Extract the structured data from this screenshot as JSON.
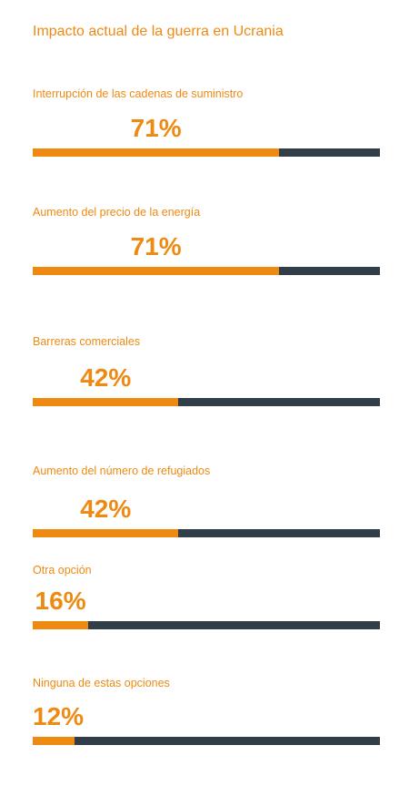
{
  "colors": {
    "accent": "#ee8a12",
    "track": "#323e47",
    "background": "#ffffff"
  },
  "chart_data": {
    "type": "bar",
    "orientation": "horizontal",
    "title": "Impacto actual de la guerra en Ucrania",
    "categories": [
      "Interrupción de las cadenas de suministro",
      "Aumento del precio de la energía",
      "Barreras comerciales",
      "Aumento del número de refugiados",
      "Otra opción",
      "Ninguna de estas opciones"
    ],
    "values": [
      71,
      71,
      42,
      42,
      16,
      12
    ],
    "value_labels": [
      "71%",
      "71%",
      "42%",
      "42%",
      "16%",
      "12%"
    ],
    "unit": "%",
    "xlim": [
      0,
      100
    ],
    "grid": false,
    "legend": "none"
  }
}
